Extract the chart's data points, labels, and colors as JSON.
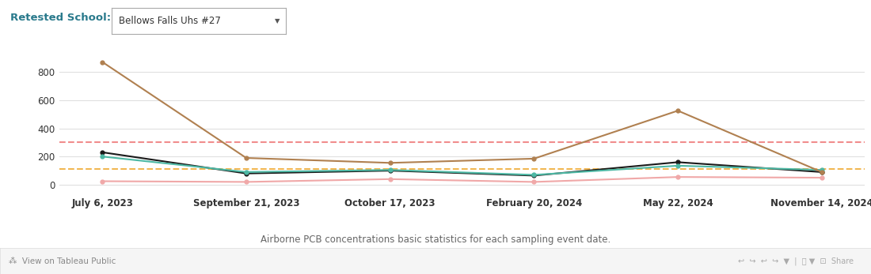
{
  "title": "Retested School:",
  "dropdown_label": "Bellows Falls Uhs #27",
  "x_labels": [
    "July 6, 2023",
    "September 21, 2023",
    "October 17, 2023",
    "February 20, 2024",
    "May 22, 2024",
    "November 14, 2024"
  ],
  "average": [
    230,
    80,
    100,
    65,
    160,
    90
  ],
  "median": [
    200,
    90,
    105,
    70,
    135,
    105
  ],
  "maximum": [
    870,
    190,
    155,
    185,
    525,
    90
  ],
  "minimum": [
    25,
    20,
    40,
    20,
    55,
    50
  ],
  "hline_red": 300,
  "hline_orange": 110,
  "color_average": "#1a1a1a",
  "color_median": "#4db8a4",
  "color_maximum": "#b08050",
  "color_minimum": "#f0a8a8",
  "color_hline_red": "#f08080",
  "color_hline_orange": "#f0b040",
  "subtitle": "Airborne PCB concentrations basic statistics for each sampling event date.",
  "background": "#ffffff",
  "header_color": "#2a7a8c",
  "footer_bg": "#f0f0f0",
  "yticks": [
    0,
    200,
    400,
    600,
    800
  ],
  "ylim_min": -50,
  "ylim_max": 960
}
